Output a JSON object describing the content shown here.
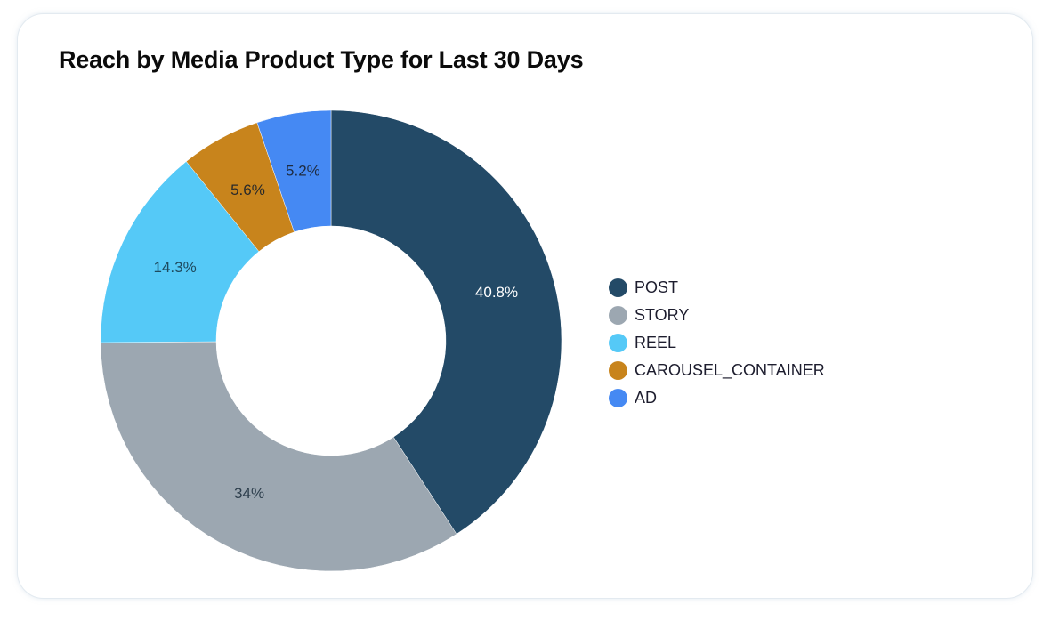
{
  "chart_data": {
    "type": "pie",
    "title": "Reach by Media Product Type for Last 30 Days",
    "donut": true,
    "legend_position": "right",
    "categories": [
      "POST",
      "STORY",
      "REEL",
      "CAROUSEL_CONTAINER",
      "AD"
    ],
    "values": [
      40.8,
      34,
      14.3,
      5.6,
      5.2
    ],
    "labels": [
      "40.8%",
      "34%",
      "14.3%",
      "5.6%",
      "5.2%"
    ],
    "colors": [
      "#234a67",
      "#9ca7b1",
      "#55c9f7",
      "#c8841c",
      "#4589f3"
    ],
    "label_colors": [
      "#ffffff",
      "#2d3e4c",
      "#1e4a5e",
      "#2a2a2a",
      "#1e2b40"
    ]
  }
}
